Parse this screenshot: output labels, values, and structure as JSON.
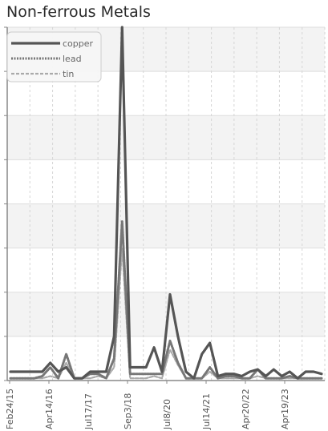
{
  "chart_data": {
    "type": "line",
    "title": "Non-ferrous Metals",
    "xlabel": "",
    "ylabel": "",
    "x_tick_labels": [
      "Feb24/15",
      "Apr14/16",
      "Jul17/17",
      "Sep3/18",
      "Jul8/20",
      "Jul14/21",
      "Apr20/22",
      "Apr19/23"
    ],
    "legend_position": "top-left",
    "grid": true,
    "ylim": [
      0,
      8
    ],
    "series": [
      {
        "name": "copper",
        "style": "solid",
        "color": "#555555",
        "values": [
          0.2,
          0.2,
          0.2,
          0.2,
          0.2,
          0.4,
          0.2,
          0.3,
          0.05,
          0.05,
          0.2,
          0.2,
          0.2,
          1.0,
          8.0,
          0.3,
          0.3,
          0.3,
          0.75,
          0.2,
          1.95,
          1.0,
          0.2,
          0.05,
          0.6,
          0.85,
          0.1,
          0.15,
          0.15,
          0.1,
          0.2,
          0.25,
          0.1,
          0.25,
          0.1,
          0.2,
          0.05,
          0.2,
          0.2,
          0.15
        ]
      },
      {
        "name": "lead",
        "style": "dotted",
        "color": "#777777",
        "values": [
          0.05,
          0.05,
          0.05,
          0.05,
          0.1,
          0.3,
          0.05,
          0.6,
          0.05,
          0.05,
          0.15,
          0.15,
          0.05,
          0.5,
          3.6,
          0.15,
          0.15,
          0.15,
          0.15,
          0.15,
          0.9,
          0.4,
          0.05,
          0.05,
          0.05,
          0.3,
          0.05,
          0.1,
          0.1,
          0.05,
          0.05,
          0.25,
          0.05,
          0.05,
          0.05,
          0.1,
          0.05,
          0.05,
          0.05,
          0.05
        ]
      },
      {
        "name": "tin",
        "style": "dashed",
        "color": "#aaaaaa",
        "values": [
          0.05,
          0.05,
          0.05,
          0.05,
          0.05,
          0.1,
          0.05,
          0.4,
          0.05,
          0.05,
          0.05,
          0.1,
          0.05,
          0.3,
          3.0,
          0.05,
          0.05,
          0.05,
          0.1,
          0.05,
          0.7,
          0.35,
          0.05,
          0.05,
          0.05,
          0.2,
          0.05,
          0.05,
          0.05,
          0.05,
          0.05,
          0.1,
          0.05,
          0.05,
          0.05,
          0.05,
          0.05,
          0.05,
          0.05,
          0.05
        ]
      }
    ]
  }
}
